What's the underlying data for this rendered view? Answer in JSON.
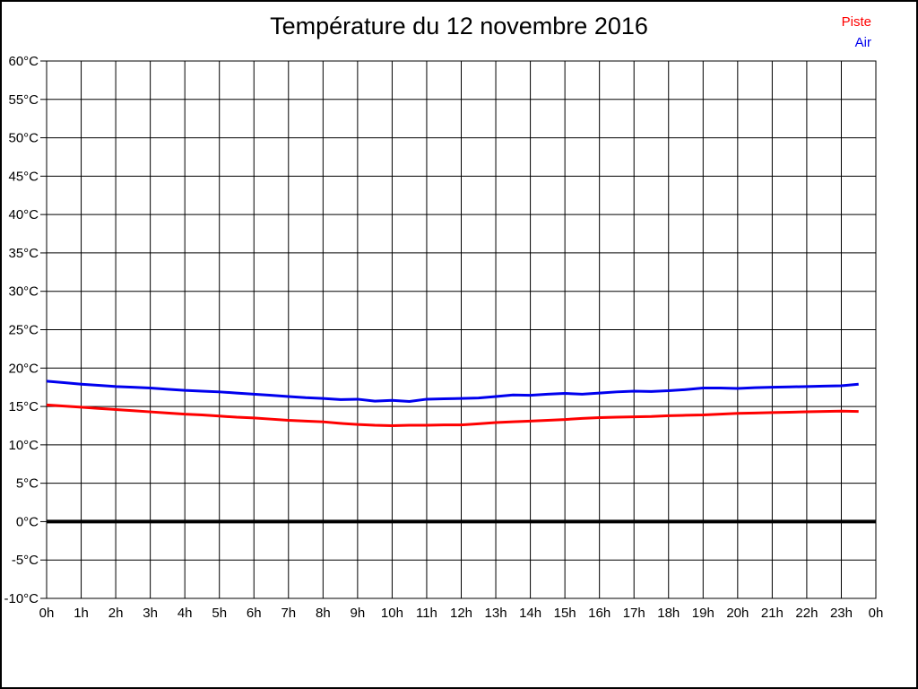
{
  "title": "Température du 12 novembre 2016",
  "legend": {
    "piste": "Piste",
    "air": "Air"
  },
  "colors": {
    "piste": "#ff0000",
    "air": "#0000ee",
    "grid": "#000000",
    "zero_line": "#000000"
  },
  "chart_data": {
    "type": "line",
    "title": "Température du 12 novembre 2016",
    "xlabel": "",
    "ylabel": "",
    "grid": true,
    "legend_position": "top-right",
    "xlim": [
      0,
      24
    ],
    "ylim": [
      -10,
      60
    ],
    "x_ticks": [
      0,
      1,
      2,
      3,
      4,
      5,
      6,
      7,
      8,
      9,
      10,
      11,
      12,
      13,
      14,
      15,
      16,
      17,
      18,
      19,
      20,
      21,
      22,
      23,
      24
    ],
    "x_ticklabels": [
      "0h",
      "1h",
      "2h",
      "3h",
      "4h",
      "5h",
      "6h",
      "7h",
      "8h",
      "9h",
      "10h",
      "11h",
      "12h",
      "13h",
      "14h",
      "15h",
      "16h",
      "17h",
      "18h",
      "19h",
      "20h",
      "21h",
      "22h",
      "23h",
      "0h"
    ],
    "y_ticks": [
      60,
      55,
      50,
      45,
      40,
      35,
      30,
      25,
      20,
      15,
      10,
      5,
      0,
      -5,
      -10
    ],
    "y_ticklabels": [
      "60°C",
      "55°C",
      "50°C",
      "45°C",
      "40°C",
      "35°C",
      "30°C",
      "25°C",
      "20°C",
      "15°C",
      "10°C",
      "5°C",
      "0°C",
      "-5°C",
      "-10°C"
    ],
    "zero_line": {
      "value": 0,
      "width": 4
    },
    "x": [
      0,
      0.5,
      1,
      1.5,
      2,
      2.5,
      3,
      3.5,
      4,
      4.5,
      5,
      5.5,
      6,
      6.5,
      7,
      7.5,
      8,
      8.5,
      9,
      9.5,
      10,
      10.5,
      11,
      11.5,
      12,
      12.5,
      13,
      13.5,
      14,
      14.5,
      15,
      15.5,
      16,
      16.5,
      17,
      17.5,
      18,
      18.5,
      19,
      19.5,
      20,
      20.5,
      21,
      21.5,
      22,
      22.5,
      23,
      23.5
    ],
    "series": [
      {
        "name": "Piste",
        "color": "#ff0000",
        "values": [
          15.2,
          15.05,
          14.9,
          14.75,
          14.6,
          14.45,
          14.3,
          14.15,
          14.0,
          13.9,
          13.75,
          13.6,
          13.5,
          13.35,
          13.2,
          13.1,
          13.0,
          12.8,
          12.65,
          12.55,
          12.5,
          12.55,
          12.55,
          12.6,
          12.6,
          12.75,
          12.9,
          13.0,
          13.1,
          13.2,
          13.3,
          13.45,
          13.55,
          13.6,
          13.65,
          13.7,
          13.8,
          13.85,
          13.9,
          14.0,
          14.1,
          14.15,
          14.2,
          14.25,
          14.3,
          14.35,
          14.4,
          14.35
        ]
      },
      {
        "name": "Air",
        "color": "#0000ee",
        "values": [
          18.3,
          18.1,
          17.9,
          17.75,
          17.6,
          17.5,
          17.4,
          17.25,
          17.1,
          17.0,
          16.9,
          16.75,
          16.6,
          16.45,
          16.3,
          16.15,
          16.05,
          15.9,
          15.95,
          15.7,
          15.8,
          15.65,
          15.95,
          16.0,
          16.05,
          16.1,
          16.3,
          16.5,
          16.45,
          16.6,
          16.7,
          16.6,
          16.75,
          16.9,
          17.0,
          16.95,
          17.05,
          17.2,
          17.4,
          17.4,
          17.35,
          17.45,
          17.5,
          17.55,
          17.6,
          17.65,
          17.7,
          17.9
        ]
      }
    ]
  }
}
